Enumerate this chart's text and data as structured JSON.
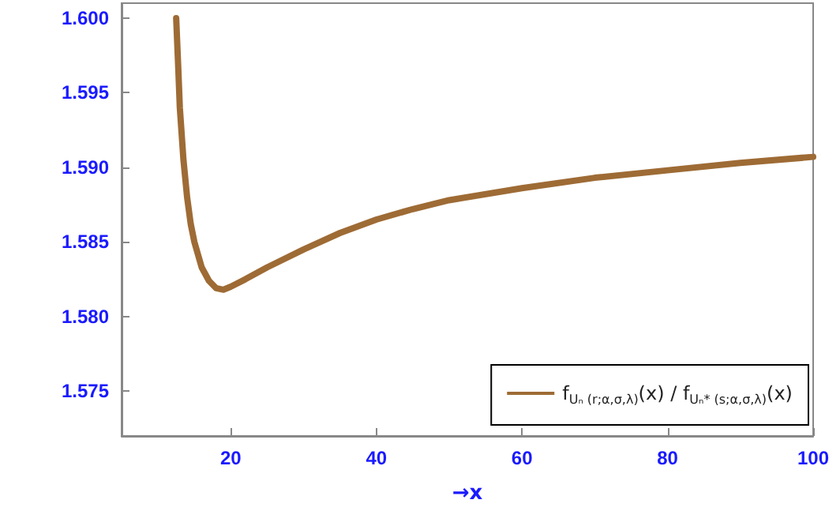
{
  "chart_data": {
    "type": "line",
    "xlabel": "→x",
    "x": [
      12.5,
      12.8,
      13,
      13.5,
      14,
      14.5,
      15,
      16,
      17,
      18,
      19,
      20,
      22,
      25,
      30,
      35,
      40,
      45,
      50,
      60,
      70,
      80,
      90,
      100
    ],
    "series": [
      {
        "name": "f$_{Uₙ (r;α,σ,λ)}$(x) / f$_{Uₙ* (s;α,σ,λ)}$(x)",
        "color": "#9e6b35",
        "values": [
          1.6,
          1.5965,
          1.594,
          1.5905,
          1.588,
          1.5862,
          1.585,
          1.5833,
          1.5824,
          1.5819,
          1.5818,
          1.582,
          1.5825,
          1.5833,
          1.5845,
          1.5856,
          1.5865,
          1.5872,
          1.5878,
          1.5886,
          1.5893,
          1.5898,
          1.5903,
          1.5907
        ]
      }
    ],
    "xlim": [
      5,
      100
    ],
    "xticks": [
      20,
      40,
      60,
      80,
      100
    ],
    "ylim": [
      1.572,
      1.601
    ],
    "yticks": [
      {
        "value": 1.575,
        "label": "1.575"
      },
      {
        "value": 1.58,
        "label": "1.580"
      },
      {
        "value": 1.585,
        "label": "1.585"
      },
      {
        "value": 1.59,
        "label": "1.590"
      },
      {
        "value": 1.595,
        "label": "1.595"
      },
      {
        "value": 1.6,
        "label": "1.600"
      }
    ],
    "grid": false,
    "legend": "bottom right",
    "marker": "none",
    "line_style": "solid"
  }
}
